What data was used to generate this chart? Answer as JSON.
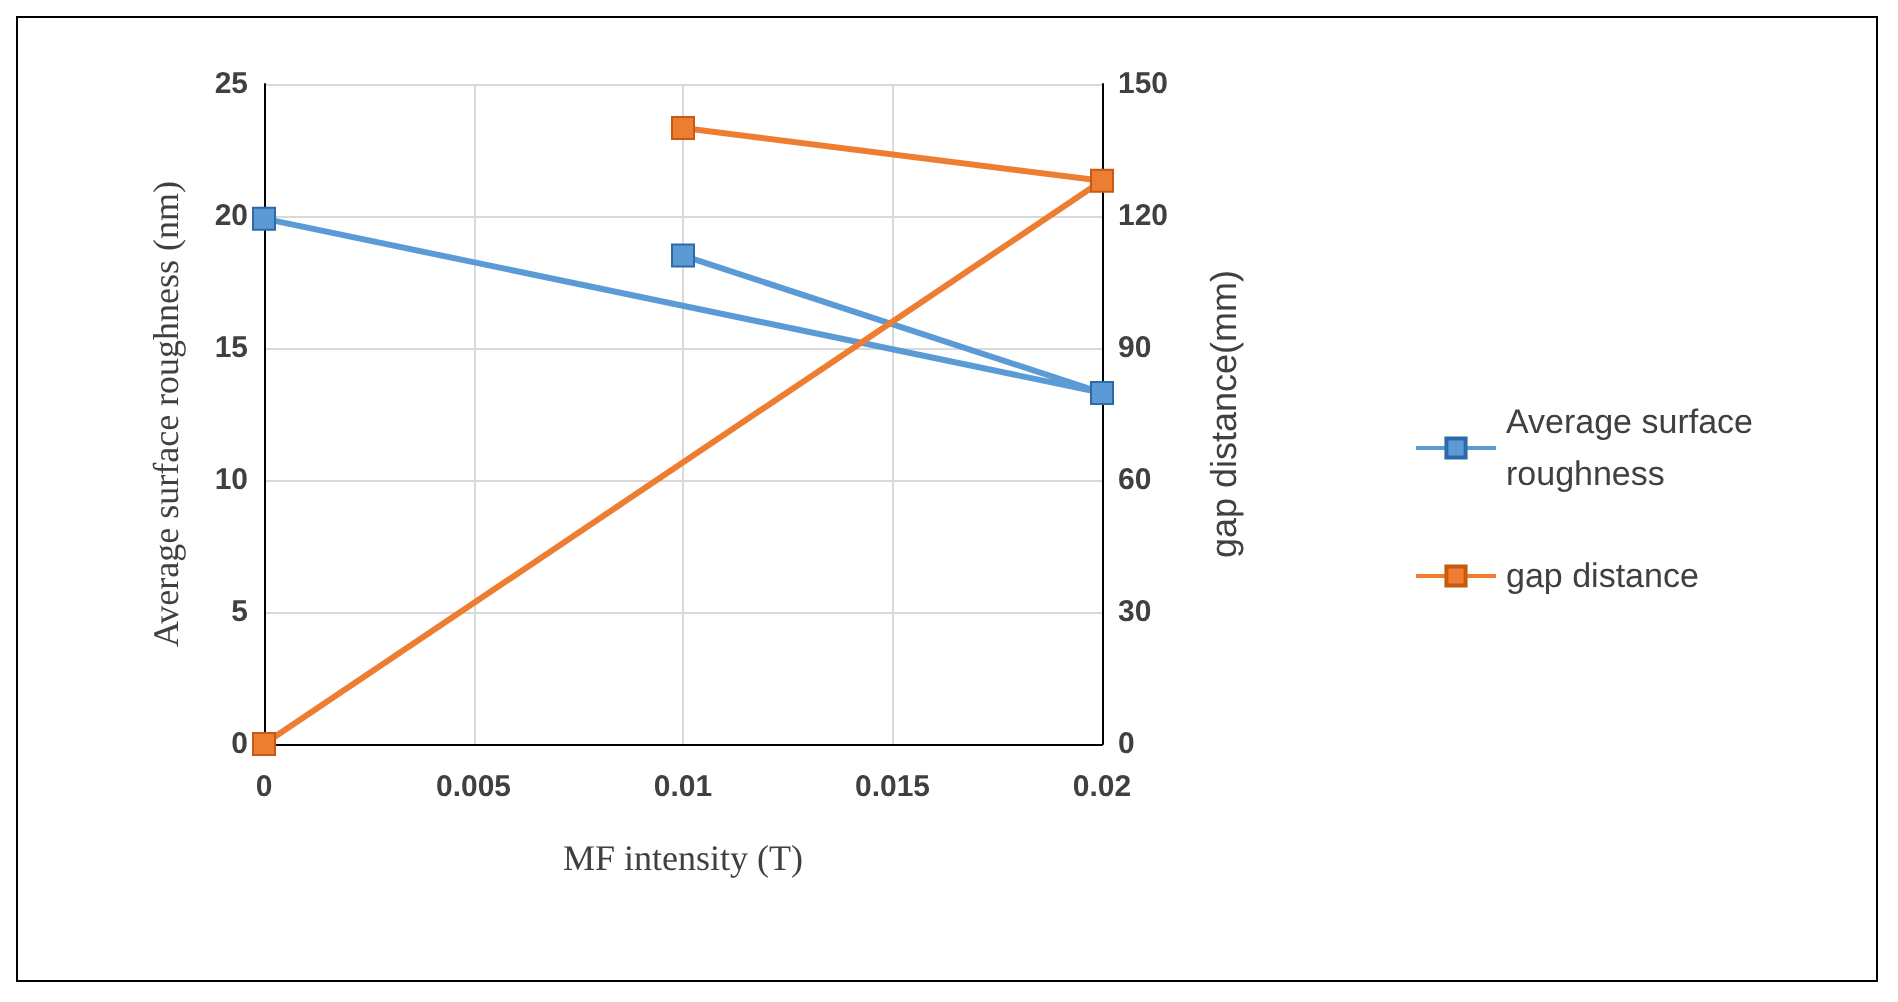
{
  "chart_data": {
    "type": "line",
    "xlabel": "MF intensity (T)",
    "ylabel": "Average surface roughness (nm)",
    "y2label": "gap distance(mm)",
    "series": [
      {
        "name": "Average surface roughness",
        "color": "#5b9bd5",
        "x": [
          0,
          0.02,
          0.01
        ],
        "values": [
          19.9,
          13.3,
          18.5
        ]
      },
      {
        "name": "gap distance",
        "color": "#ed7d31",
        "axis": "y2",
        "x": [
          0,
          0.02,
          0.01
        ],
        "values": [
          0,
          128,
          140
        ]
      }
    ],
    "xlim": [
      0,
      0.02
    ],
    "xticks": [
      0,
      0.005,
      0.01,
      0.015,
      0.02
    ],
    "ylim": [
      0,
      25
    ],
    "yticks": [
      0,
      5,
      10,
      15,
      20,
      25
    ],
    "y2lim": [
      0,
      150
    ],
    "y2ticks": [
      0,
      30,
      60,
      90,
      120,
      150
    ],
    "grid": true,
    "legend": "right",
    "marker": "square",
    "line_style": "solid"
  }
}
